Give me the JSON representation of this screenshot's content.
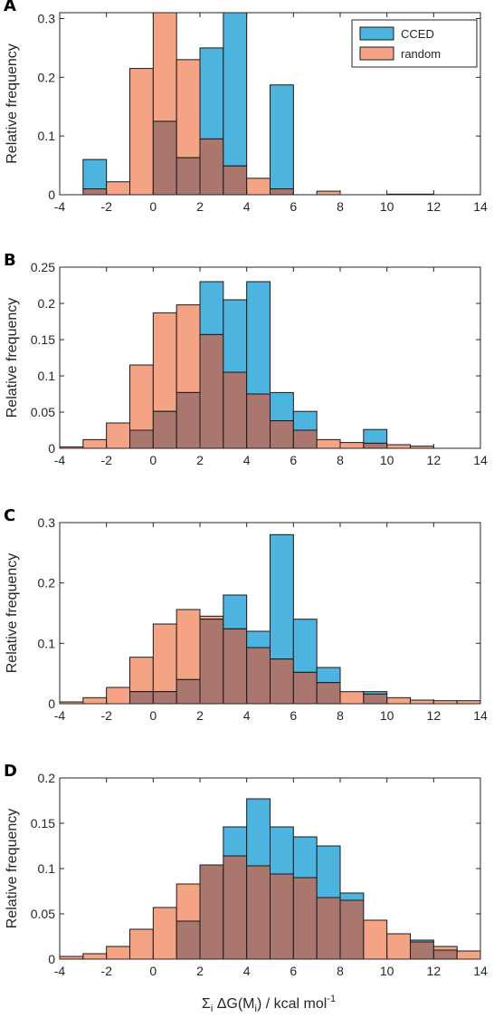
{
  "xlabel": "Σ",
  "xlabel_sub1": "i",
  "xlabel_mid": " ΔG(M",
  "xlabel_sub2": "i",
  "xlabel_end": ") / kcal mol",
  "xlabel_sup": "-1",
  "chart_data": [
    {
      "type": "bar",
      "panel": "A",
      "ylabel": "Relative frequency",
      "xlim": [
        -4,
        14
      ],
      "ylim": [
        0,
        0.31
      ],
      "xticks": [
        -4,
        -2,
        0,
        2,
        4,
        6,
        8,
        10,
        12,
        14
      ],
      "yticks": [
        0,
        0.1,
        0.2,
        0.3
      ],
      "ytick_labels": [
        "0",
        "0.1",
        "0.2",
        "0.3"
      ],
      "show_legend": true,
      "legend_position": "top-right",
      "bin_edges": [
        -3,
        -2,
        -1,
        0,
        1,
        2,
        3,
        4,
        5,
        6,
        7,
        8,
        9,
        10,
        11,
        12
      ],
      "series": [
        {
          "name": "CCED",
          "color": "#4DB4E0",
          "values": [
            0.06,
            0,
            0,
            0.125,
            0.063,
            0.25,
            0.31,
            0,
            0.187,
            0,
            0,
            0,
            0,
            0,
            0
          ]
        },
        {
          "name": "random",
          "color": "#F4A384",
          "values": [
            0.01,
            0.022,
            0.215,
            0.31,
            0.23,
            0.095,
            0.049,
            0.028,
            0.01,
            0,
            0.006,
            0,
            0,
            0.001,
            0.001
          ]
        }
      ]
    },
    {
      "type": "bar",
      "panel": "B",
      "ylabel": "Relative frequency",
      "xlim": [
        -4,
        14
      ],
      "ylim": [
        0,
        0.25
      ],
      "xticks": [
        -4,
        -2,
        0,
        2,
        4,
        6,
        8,
        10,
        12,
        14
      ],
      "yticks": [
        0,
        0.05,
        0.1,
        0.15,
        0.2,
        0.25
      ],
      "ytick_labels": [
        "0",
        "0.05",
        "0.1",
        "0.15",
        "0.2",
        "0.25"
      ],
      "show_legend": false,
      "bin_edges": [
        -4,
        -3,
        -2,
        -1,
        0,
        1,
        2,
        3,
        4,
        5,
        6,
        7,
        8,
        9,
        10,
        11,
        12
      ],
      "series": [
        {
          "name": "CCED",
          "color": "#4DB4E0",
          "values": [
            0,
            0,
            0,
            0.025,
            0.051,
            0.077,
            0.23,
            0.205,
            0.23,
            0.077,
            0.051,
            0,
            0,
            0.026,
            0,
            0
          ]
        },
        {
          "name": "random",
          "color": "#F4A384",
          "values": [
            0.002,
            0.012,
            0.035,
            0.115,
            0.187,
            0.198,
            0.157,
            0.105,
            0.075,
            0.038,
            0.025,
            0.012,
            0.008,
            0.007,
            0.005,
            0.003
          ]
        }
      ]
    },
    {
      "type": "bar",
      "panel": "C",
      "ylabel": "Relative frequency",
      "xlim": [
        -4,
        14
      ],
      "ylim": [
        0,
        0.3
      ],
      "xticks": [
        -4,
        -2,
        0,
        2,
        4,
        6,
        8,
        10,
        12,
        14
      ],
      "yticks": [
        0,
        0.1,
        0.2,
        0.3
      ],
      "ytick_labels": [
        "0",
        "0.1",
        "0.2",
        "0.3"
      ],
      "show_legend": false,
      "bin_edges": [
        -4,
        -3,
        -2,
        -1,
        0,
        1,
        2,
        3,
        4,
        5,
        6,
        7,
        8,
        9,
        10,
        11,
        12,
        13,
        14
      ],
      "series": [
        {
          "name": "CCED",
          "color": "#4DB4E0",
          "values": [
            0,
            0,
            0,
            0.02,
            0.02,
            0.04,
            0.14,
            0.18,
            0.12,
            0.28,
            0.14,
            0.06,
            0,
            0.02,
            0,
            0,
            0,
            0
          ]
        },
        {
          "name": "random",
          "color": "#F4A384",
          "values": [
            0.003,
            0.01,
            0.027,
            0.077,
            0.132,
            0.156,
            0.145,
            0.124,
            0.093,
            0.074,
            0.052,
            0.035,
            0.02,
            0.016,
            0.01,
            0.006,
            0.005,
            0.005
          ]
        }
      ]
    },
    {
      "type": "bar",
      "panel": "D",
      "ylabel": "Relative frequency",
      "xlim": [
        -4,
        14
      ],
      "ylim": [
        0,
        0.2
      ],
      "xticks": [
        -4,
        -2,
        0,
        2,
        4,
        6,
        8,
        10,
        12,
        14
      ],
      "yticks": [
        0,
        0.05,
        0.1,
        0.15,
        0.2
      ],
      "ytick_labels": [
        "0",
        "0.05",
        "0.1",
        "0.15",
        "0.2"
      ],
      "show_legend": false,
      "bin_edges": [
        -4,
        -3,
        -2,
        -1,
        0,
        1,
        2,
        3,
        4,
        5,
        6,
        7,
        8,
        9,
        10,
        11,
        12,
        13,
        14
      ],
      "series": [
        {
          "name": "CCED",
          "color": "#4DB4E0",
          "values": [
            0,
            0,
            0,
            0,
            0,
            0.042,
            0.104,
            0.146,
            0.177,
            0.146,
            0.135,
            0.125,
            0.073,
            0,
            0,
            0.021,
            0.01,
            0
          ]
        },
        {
          "name": "random",
          "color": "#F4A384",
          "values": [
            0.003,
            0.006,
            0.014,
            0.033,
            0.057,
            0.083,
            0.104,
            0.114,
            0.103,
            0.094,
            0.09,
            0.068,
            0.065,
            0.043,
            0.028,
            0.019,
            0.014,
            0.009
          ]
        }
      ]
    }
  ]
}
